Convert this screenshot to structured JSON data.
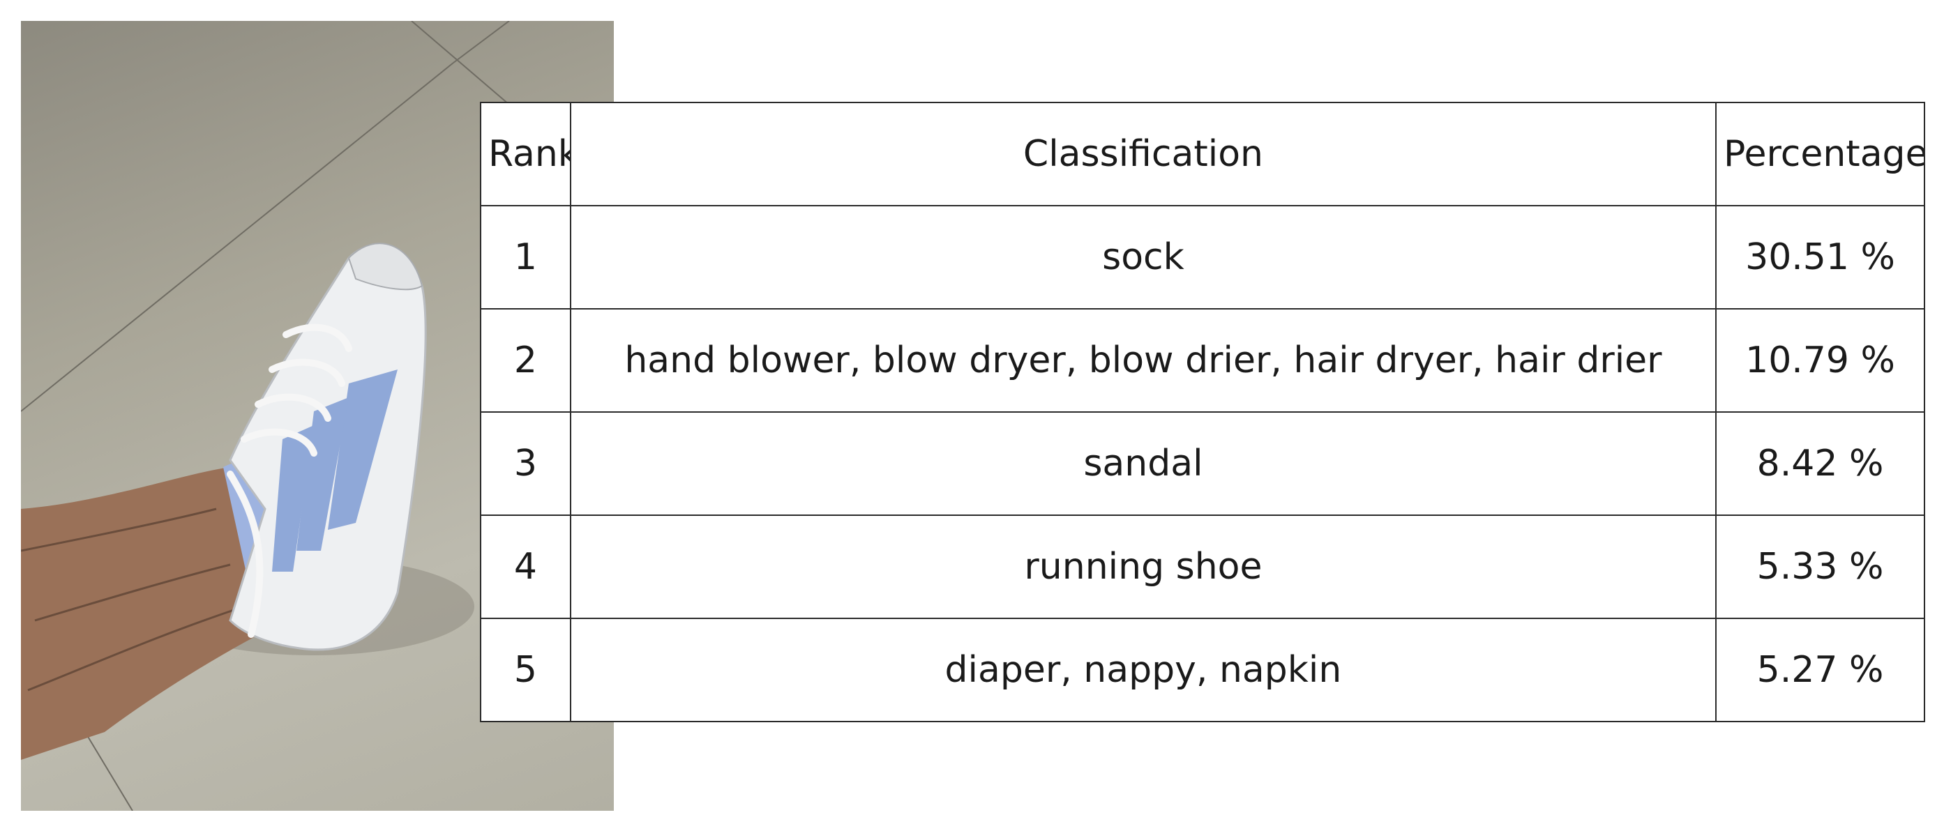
{
  "table": {
    "headers": {
      "rank": "Rank",
      "classification": "Classification",
      "percentage": "Percentage"
    },
    "rows": [
      {
        "rank": "1",
        "classification": "sock",
        "percentage": "30.51 %"
      },
      {
        "rank": "2",
        "classification": "hand blower, blow dryer, blow drier, hair dryer, hair drier",
        "percentage": "10.79 %"
      },
      {
        "rank": "3",
        "classification": "sandal",
        "percentage": "8.42 %"
      },
      {
        "rank": "4",
        "classification": "running shoe",
        "percentage": "5.33 %"
      },
      {
        "rank": "5",
        "classification": "diaper, nappy, napkin",
        "percentage": "5.27 %"
      }
    ]
  },
  "photo": {
    "subject": "photo-of-foot-in-white-sneaker-with-blue-stripes",
    "colors": {
      "floor": "#b2b0a3",
      "skin": "#9a7158",
      "sneaker": "#eef0f2",
      "stripes": "#8fa8d8",
      "sock": "#9eb3e0"
    }
  }
}
